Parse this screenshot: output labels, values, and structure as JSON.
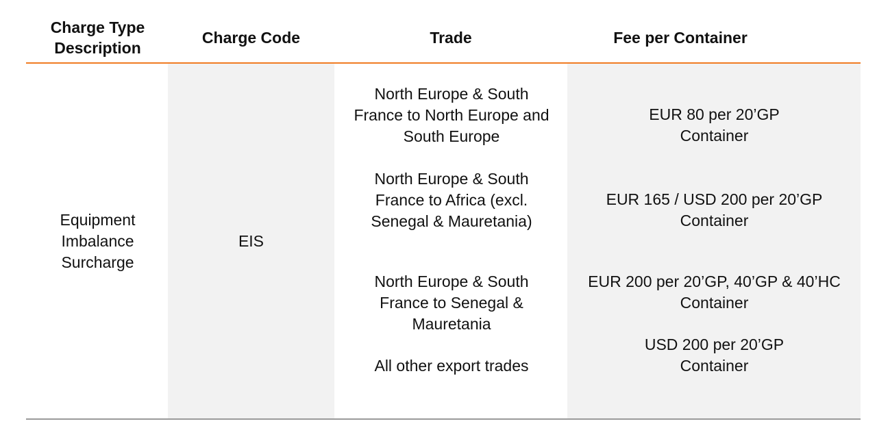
{
  "headers": [
    "Charge Type Description",
    "Charge Code",
    "Trade",
    "Fee per Container"
  ],
  "row": {
    "charge_type": "Equipment Imbalance Surcharge",
    "charge_code": "EIS",
    "trades": [
      "North Europe & South France to North Europe and South Europe",
      "North Europe & South France to Africa (excl. Senegal & Mauretania)",
      "North Europe & South France to Senegal & Mauretania",
      "All other export trades"
    ],
    "fees": [
      "EUR 80 per 20’GP Container",
      "EUR 165 / USD 200 per 20’GP Container",
      "EUR 200 per 20’GP, 40’GP & 40’HC Container",
      "USD 200 per 20’GP Container"
    ]
  },
  "colors": {
    "header_rule": "#f07b22",
    "shaded_column": "#f2f2f2",
    "bottom_rule": "#9a9a9a"
  }
}
